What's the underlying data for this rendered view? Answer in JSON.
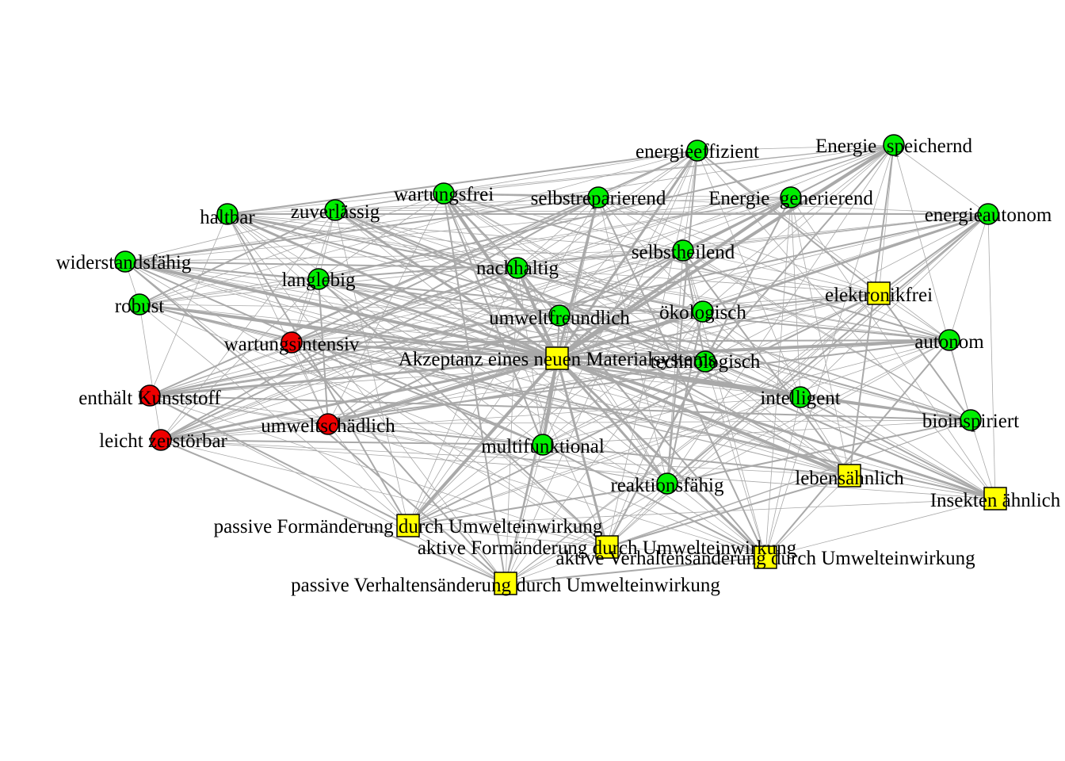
{
  "colors": {
    "positive": "#00ee00",
    "negative": "#ee0000",
    "feature": "#ffff00",
    "edge": "#a9a9a9",
    "outline": "#000000"
  },
  "nodes": [
    {
      "id": "akzeptanz",
      "label": "Akzeptanz eines neuen Materialsystems",
      "kind": "feature",
      "shape": "square"
    },
    {
      "id": "energieeffizient",
      "label": "energieeffizient",
      "kind": "positive",
      "shape": "circle"
    },
    {
      "id": "energie_speichernd",
      "label": "Energie  speichernd",
      "kind": "positive",
      "shape": "circle"
    },
    {
      "id": "wartungsfrei",
      "label": "wartungsfrei",
      "kind": "positive",
      "shape": "circle"
    },
    {
      "id": "selbstreparierend",
      "label": "selbstreparierend",
      "kind": "positive",
      "shape": "circle"
    },
    {
      "id": "energie_generierend",
      "label": "Energie  generierend",
      "kind": "positive",
      "shape": "circle"
    },
    {
      "id": "haltbar",
      "label": "haltbar",
      "kind": "positive",
      "shape": "circle"
    },
    {
      "id": "zuverlaessig",
      "label": "zuverlässig",
      "kind": "positive",
      "shape": "circle"
    },
    {
      "id": "energieautonom",
      "label": "energieautonom",
      "kind": "positive",
      "shape": "circle"
    },
    {
      "id": "selbstheilend",
      "label": "selbstheilend",
      "kind": "positive",
      "shape": "circle"
    },
    {
      "id": "widerstandsfaehig",
      "label": "widerstandsfähig",
      "kind": "positive",
      "shape": "circle"
    },
    {
      "id": "nachhaltig",
      "label": "nachhaltig",
      "kind": "positive",
      "shape": "circle"
    },
    {
      "id": "langlebig",
      "label": "langlebig",
      "kind": "positive",
      "shape": "circle"
    },
    {
      "id": "elektronikfrei",
      "label": "elektronikfrei",
      "kind": "feature",
      "shape": "square"
    },
    {
      "id": "robust",
      "label": "robust",
      "kind": "positive",
      "shape": "circle"
    },
    {
      "id": "oekologisch",
      "label": "ökologisch",
      "kind": "positive",
      "shape": "circle"
    },
    {
      "id": "umweltfreundlich",
      "label": "umweltfreundlich",
      "kind": "positive",
      "shape": "circle"
    },
    {
      "id": "wartungsintensiv",
      "label": "wartungsintensiv",
      "kind": "negative",
      "shape": "circle"
    },
    {
      "id": "autonom",
      "label": "autonom",
      "kind": "positive",
      "shape": "circle"
    },
    {
      "id": "technologisch",
      "label": "technologisch",
      "kind": "positive",
      "shape": "circle"
    },
    {
      "id": "enthaelt_kunststoff",
      "label": "enthält Kunststoff",
      "kind": "negative",
      "shape": "circle"
    },
    {
      "id": "intelligent",
      "label": "intelligent",
      "kind": "positive",
      "shape": "circle"
    },
    {
      "id": "bioinspiriert",
      "label": "bioinspiriert",
      "kind": "positive",
      "shape": "circle"
    },
    {
      "id": "umweltschaedlich",
      "label": "umweltschädlich",
      "kind": "negative",
      "shape": "circle"
    },
    {
      "id": "leicht_zerstoerbar",
      "label": "leicht zerstörbar",
      "kind": "negative",
      "shape": "circle"
    },
    {
      "id": "multifunktional",
      "label": "multifunktional",
      "kind": "positive",
      "shape": "circle"
    },
    {
      "id": "lebensaehnlich",
      "label": "lebensähnlich",
      "kind": "feature",
      "shape": "square"
    },
    {
      "id": "reaktionsfaehig",
      "label": "reaktionsfähig",
      "kind": "positive",
      "shape": "circle"
    },
    {
      "id": "insekten_aehnlich",
      "label": "Insekten ähnlich",
      "kind": "feature",
      "shape": "square"
    },
    {
      "id": "passive_formaenderung",
      "label": "passive Formänderung durch Umwelteinwirkung",
      "kind": "feature",
      "shape": "square"
    },
    {
      "id": "aktive_formaenderung",
      "label": "aktive Formänderung durch Umwelteinwirkung",
      "kind": "feature",
      "shape": "square"
    },
    {
      "id": "aktive_verhaltensaenderung",
      "label": "aktive Verhaltensänderung durch Umwelteinwirkung",
      "kind": "feature",
      "shape": "square"
    },
    {
      "id": "passive_verhaltensaenderung",
      "label": "passive Verhaltensänderung durch Umwelteinwirkung",
      "kind": "feature",
      "shape": "square"
    }
  ]
}
